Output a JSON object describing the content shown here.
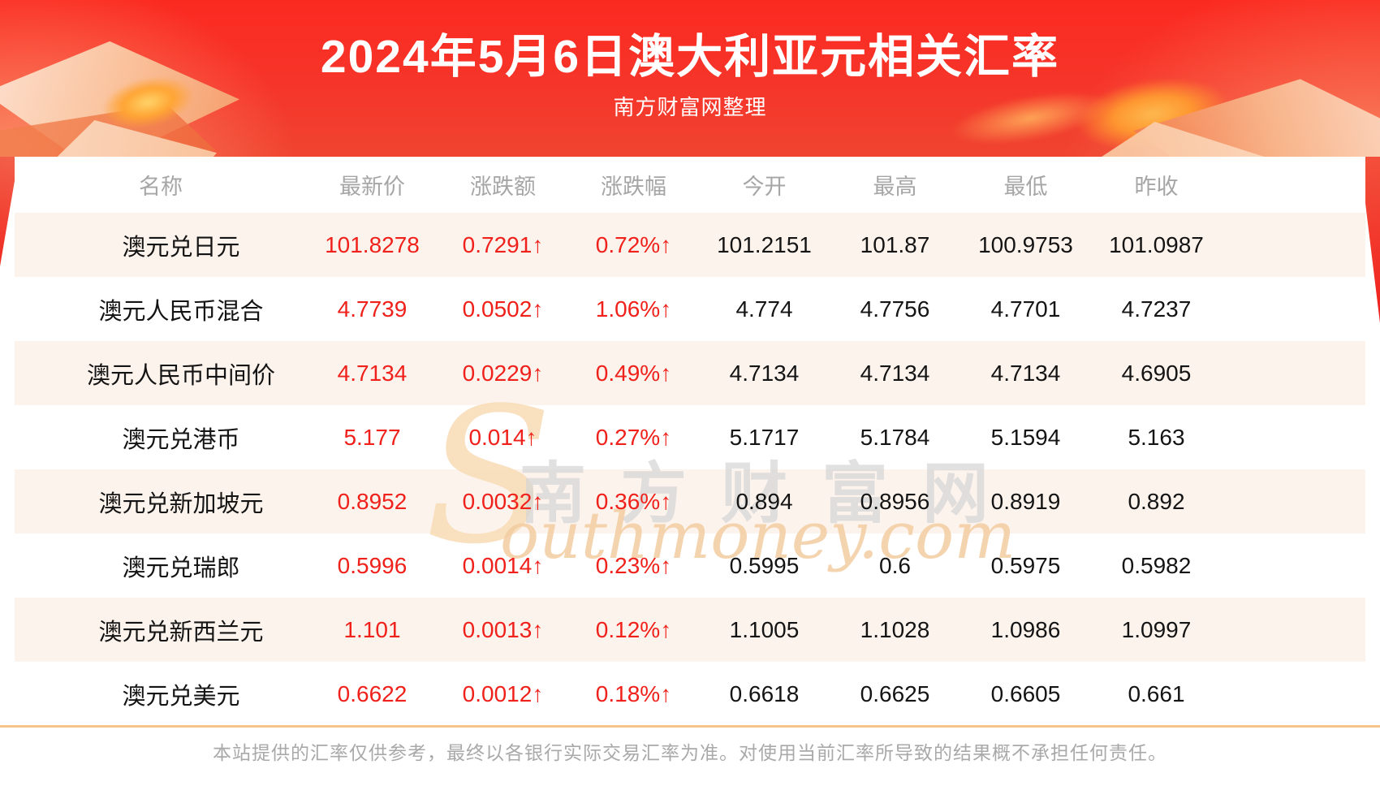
{
  "banner": {
    "title": "2024年5月6日澳大利亚元相关汇率",
    "subtitle": "南方财富网整理"
  },
  "table": {
    "columns": [
      "名称",
      "最新价",
      "涨跌额",
      "涨跌幅",
      "今开",
      "最高",
      "最低",
      "昨收"
    ],
    "rows": [
      {
        "name": "澳元兑日元",
        "latest": "101.8278",
        "change": "0.7291↑",
        "pct": "0.72%↑",
        "open": "101.2151",
        "high": "101.87",
        "low": "100.9753",
        "prev": "101.0987"
      },
      {
        "name": "澳元人民币混合",
        "latest": "4.7739",
        "change": "0.0502↑",
        "pct": "1.06%↑",
        "open": "4.774",
        "high": "4.7756",
        "low": "4.7701",
        "prev": "4.7237"
      },
      {
        "name": "澳元人民币中间价",
        "latest": "4.7134",
        "change": "0.0229↑",
        "pct": "0.49%↑",
        "open": "4.7134",
        "high": "4.7134",
        "low": "4.7134",
        "prev": "4.6905"
      },
      {
        "name": "澳元兑港币",
        "latest": "5.177",
        "change": "0.014↑",
        "pct": "0.27%↑",
        "open": "5.1717",
        "high": "5.1784",
        "low": "5.1594",
        "prev": "5.163"
      },
      {
        "name": "澳元兑新加坡元",
        "latest": "0.8952",
        "change": "0.0032↑",
        "pct": "0.36%↑",
        "open": "0.894",
        "high": "0.8956",
        "low": "0.8919",
        "prev": "0.892"
      },
      {
        "name": "澳元兑瑞郎",
        "latest": "0.5996",
        "change": "0.0014↑",
        "pct": "0.23%↑",
        "open": "0.5995",
        "high": "0.6",
        "low": "0.5975",
        "prev": "0.5982"
      },
      {
        "name": "澳元兑新西兰元",
        "latest": "1.101",
        "change": "0.0013↑",
        "pct": "0.12%↑",
        "open": "1.1005",
        "high": "1.1028",
        "low": "1.0986",
        "prev": "1.0997"
      },
      {
        "name": "澳元兑美元",
        "latest": "0.6622",
        "change": "0.0012↑",
        "pct": "0.18%↑",
        "open": "0.6618",
        "high": "0.6625",
        "low": "0.6605",
        "prev": "0.661"
      }
    ]
  },
  "watermark": {
    "initial": "S",
    "cn": "南方财富网",
    "en": "outhmoney.com"
  },
  "footer": {
    "disclaimer": "本站提供的汇率仅供参考，最终以各银行实际交易汇率为准。对使用当前汇率所导致的结果概不承担任何责任。"
  },
  "colors": {
    "banner_red": "#fb2a21",
    "row_pink": "#fdf3ed",
    "up_red": "#f0201a",
    "divider_tan": "#f5c48b",
    "header_gray": "#a6a6a6"
  }
}
